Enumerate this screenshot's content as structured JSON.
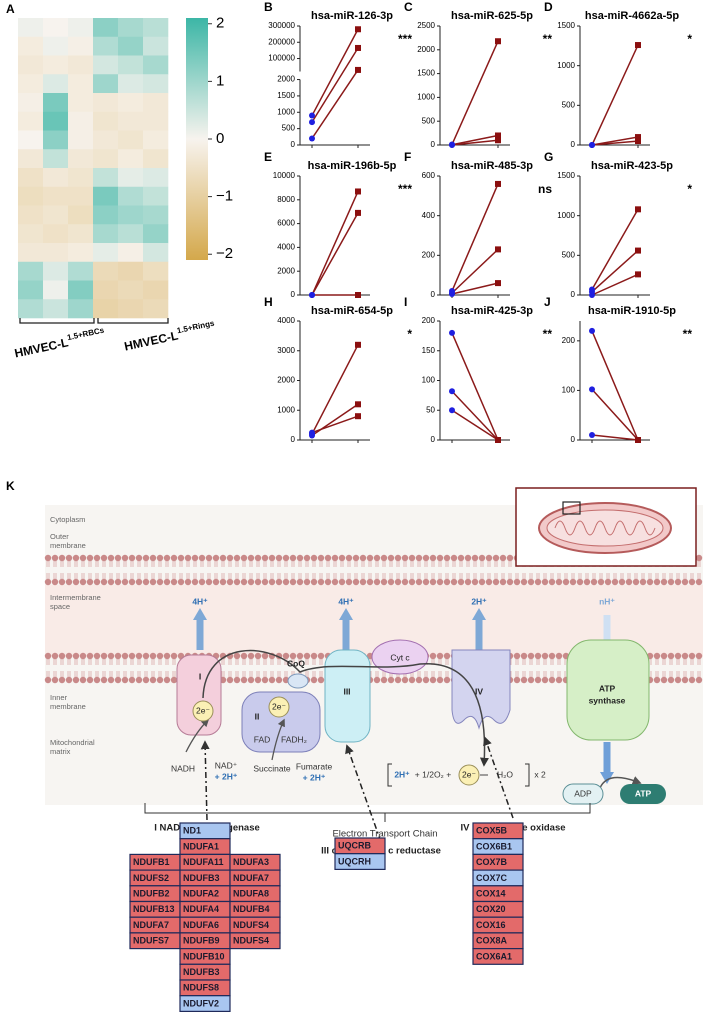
{
  "chart_data": [
    {
      "type": "heatmap",
      "label": "A",
      "values": [
        [
          0.1,
          0.0,
          0.1,
          1.2,
          0.9,
          0.7
        ],
        [
          -0.2,
          0.1,
          -0.1,
          0.8,
          1.1,
          0.5
        ],
        [
          -0.3,
          -0.2,
          -0.3,
          0.4,
          0.6,
          0.9
        ],
        [
          -0.2,
          0.3,
          -0.2,
          1.0,
          0.3,
          0.4
        ],
        [
          -0.1,
          1.4,
          -0.2,
          -0.3,
          -0.2,
          -0.3
        ],
        [
          -0.2,
          1.6,
          -0.1,
          -0.4,
          -0.3,
          -0.3
        ],
        [
          0.0,
          1.2,
          -0.1,
          -0.3,
          -0.4,
          -0.2
        ],
        [
          -0.3,
          0.6,
          -0.3,
          -0.4,
          -0.2,
          -0.4
        ],
        [
          -0.5,
          -0.3,
          -0.4,
          0.6,
          0.2,
          0.3
        ],
        [
          -0.6,
          -0.5,
          -0.5,
          1.4,
          0.8,
          0.6
        ],
        [
          -0.5,
          -0.4,
          -0.6,
          1.2,
          1.0,
          0.9
        ],
        [
          -0.4,
          -0.5,
          -0.4,
          0.9,
          0.7,
          1.1
        ],
        [
          -0.3,
          -0.3,
          -0.2,
          0.2,
          -0.1,
          0.4
        ],
        [
          0.9,
          0.3,
          0.8,
          -0.7,
          -0.8,
          -0.6
        ],
        [
          1.1,
          0.1,
          1.3,
          -0.8,
          -0.7,
          -0.8
        ],
        [
          0.8,
          0.5,
          1.0,
          -0.9,
          -0.8,
          -0.7
        ]
      ],
      "x_groups": [
        {
          "text": "HMVEC-L",
          "superscript": "1.5+RBCs"
        },
        {
          "text": "HMVEC-L",
          "superscript": "1.5+Rings"
        }
      ],
      "colorbar": {
        "colors": [
          "#d4a84b",
          "#f7f3ee",
          "#3cb6a6"
        ],
        "ylim": [
          -2.1,
          2.1
        ],
        "yticks": [
          2,
          1,
          0,
          {
            "value": -1,
            "label": "−1"
          },
          {
            "value": -2,
            "label": "−2"
          }
        ]
      }
    },
    {
      "type": "line",
      "label": "B",
      "title": "hsa-miR-126-3p",
      "significance": "***",
      "line_color": "#8b1a1a",
      "segments": [
        {
          "ylim": [
            0,
            2000
          ],
          "yticks": [
            0,
            500,
            1000,
            1500,
            2000
          ]
        },
        {
          "ylim": [
            20000,
            300000
          ],
          "yticks": [
            100000,
            200000,
            300000
          ]
        }
      ],
      "series": [
        {
          "color": "#1f1fe0",
          "values": [
            900,
            700,
            200
          ]
        },
        {
          "color": "#8b0f0f",
          "values": [
            280000,
            165000,
            30000
          ]
        }
      ]
    },
    {
      "type": "line",
      "label": "C",
      "title": "hsa-miR-625-5p",
      "significance": "**",
      "line_color": "#8b1a1a",
      "ylim": [
        0,
        2500
      ],
      "yticks": [
        0,
        500,
        1000,
        1500,
        2000,
        2500
      ],
      "series": [
        {
          "color": "#1f1fe0",
          "values": [
            10,
            5,
            0
          ]
        },
        {
          "color": "#8b0f0f",
          "values": [
            2180,
            200,
            100
          ]
        }
      ]
    },
    {
      "type": "line",
      "label": "D",
      "title": "hsa-miR-4662a-5p",
      "significance": "*",
      "line_color": "#8b1a1a",
      "ylim": [
        0,
        1500
      ],
      "yticks": [
        0,
        500,
        1000,
        1500
      ],
      "series": [
        {
          "color": "#1f1fe0",
          "values": [
            0,
            0,
            0
          ]
        },
        {
          "color": "#8b0f0f",
          "values": [
            1260,
            100,
            50
          ]
        }
      ]
    },
    {
      "type": "line",
      "label": "E",
      "title": "hsa-miR-196b-5p",
      "significance": "***",
      "line_color": "#8b1a1a",
      "ylim": [
        0,
        10000
      ],
      "yticks": [
        0,
        2000,
        4000,
        6000,
        8000,
        10000
      ],
      "series": [
        {
          "color": "#1f1fe0",
          "values": [
            0,
            0,
            0
          ]
        },
        {
          "color": "#8b0f0f",
          "values": [
            8700,
            6900,
            0
          ]
        }
      ]
    },
    {
      "type": "line",
      "label": "F",
      "title": "hsa-miR-485-3p",
      "significance": "ns",
      "line_color": "#8b1a1a",
      "ylim": [
        0,
        600
      ],
      "yticks": [
        0,
        200,
        400,
        600
      ],
      "series": [
        {
          "color": "#1f1fe0",
          "values": [
            20,
            10,
            5
          ]
        },
        {
          "color": "#8b0f0f",
          "values": [
            560,
            230,
            60
          ]
        }
      ]
    },
    {
      "type": "line",
      "label": "G",
      "title": "hsa-miR-423-5p",
      "significance": "*",
      "line_color": "#8b1a1a",
      "ylim": [
        0,
        1500
      ],
      "yticks": [
        0,
        500,
        1000,
        1500
      ],
      "series": [
        {
          "color": "#1f1fe0",
          "values": [
            70,
            40,
            0
          ]
        },
        {
          "color": "#8b0f0f",
          "values": [
            1080,
            560,
            260
          ]
        }
      ]
    },
    {
      "type": "line",
      "label": "H",
      "title": "hsa-miR-654-5p",
      "significance": "*",
      "line_color": "#8b1a1a",
      "ylim": [
        0,
        4000
      ],
      "yticks": [
        0,
        1000,
        2000,
        3000,
        4000
      ],
      "series": [
        {
          "color": "#1f1fe0",
          "values": [
            200,
            150,
            250
          ]
        },
        {
          "color": "#8b0f0f",
          "values": [
            3200,
            1200,
            800
          ]
        }
      ]
    },
    {
      "type": "line",
      "label": "I",
      "title": "hsa-miR-425-3p",
      "significance": "**",
      "line_color": "#8b1a1a",
      "ylim": [
        0,
        200
      ],
      "yticks": [
        0,
        50,
        100,
        150,
        200
      ],
      "series": [
        {
          "color": "#1f1fe0",
          "values": [
            180,
            82,
            50
          ]
        },
        {
          "color": "#8b0f0f",
          "values": [
            0,
            0,
            0
          ]
        }
      ]
    },
    {
      "type": "line",
      "label": "J",
      "title": "hsa-miR-1910-5p",
      "significance": "**",
      "line_color": "#8b1a1a",
      "ylim": [
        0,
        240
      ],
      "yticks": [
        0,
        100,
        200
      ],
      "series": [
        {
          "color": "#1f1fe0",
          "values": [
            220,
            102,
            10
          ]
        },
        {
          "color": "#8b0f0f",
          "values": [
            0,
            0,
            0
          ]
        }
      ]
    }
  ],
  "diagram": {
    "label": "K",
    "texts": [
      "Cytoplasm",
      "Outer",
      "membrane",
      "Intermembrane",
      "space",
      "Inner",
      "membrane",
      "Mitochondrial",
      "matrix",
      "I",
      "II",
      "III",
      "IV",
      "Cyt c",
      "CoQ",
      "ATP",
      "synthase",
      "4H⁺",
      "4H⁺",
      "2H⁺",
      "nH⁺",
      "2e⁻",
      "2e⁻",
      "FAD",
      "FADH₂",
      "NADH",
      "NAD⁺",
      "+ 2H⁺",
      "Succinate",
      "Fumarate",
      "+ 2H⁺",
      "2H⁺",
      "+ 1/2O₂ +",
      "2e⁻",
      "H₂O",
      "x 2",
      "ADP",
      "ATP",
      "Electron Transport Chain",
      "I NADH dehydrogenase",
      "III cytochrome c reductase",
      "IV Cytochrome oxidase"
    ],
    "tables": [
      {
        "columns": [
          [
            {
              "text": "NDUFB1",
              "color": "#e36a6a"
            },
            {
              "text": "NDUFS2",
              "color": "#e36a6a"
            },
            {
              "text": "NDUFB2",
              "color": "#e36a6a"
            },
            {
              "text": "NDUFB13",
              "color": "#e36a6a"
            },
            {
              "text": "NDUFA7",
              "color": "#e36a6a"
            },
            {
              "text": "NDUFS7",
              "color": "#e36a6a"
            }
          ],
          [
            {
              "text": "ND1",
              "color": "#a9c6f0"
            },
            {
              "text": "NDUFA1",
              "color": "#e36a6a"
            },
            {
              "text": "NDUFA11",
              "color": "#e36a6a"
            },
            {
              "text": "NDUFB3",
              "color": "#e36a6a"
            },
            {
              "text": "NDUFA2",
              "color": "#e36a6a"
            },
            {
              "text": "NDUFA4",
              "color": "#e36a6a"
            },
            {
              "text": "NDUFA6",
              "color": "#e36a6a"
            },
            {
              "text": "NDUFB9",
              "color": "#e36a6a"
            },
            {
              "text": "NDUFB10",
              "color": "#e36a6a"
            },
            {
              "text": "NDUFB3",
              "color": "#e36a6a"
            },
            {
              "text": "NDUFS8",
              "color": "#e36a6a"
            },
            {
              "text": "NDUFV2",
              "color": "#a9c6f0"
            }
          ],
          [
            {
              "text": "NDUFA3",
              "color": "#e36a6a"
            },
            {
              "text": "NDUFA7",
              "color": "#e36a6a"
            },
            {
              "text": "NDUFA8",
              "color": "#e36a6a"
            },
            {
              "text": "NDUFB4",
              "color": "#e36a6a"
            },
            {
              "text": "NDUFS4",
              "color": "#e36a6a"
            },
            {
              "text": "NDUFS4",
              "color": "#e36a6a"
            }
          ]
        ]
      },
      {
        "columns": [
          [
            {
              "text": "UQCRB",
              "color": "#e36a6a"
            },
            {
              "text": "UQCRH",
              "color": "#a9c6f0"
            }
          ]
        ]
      },
      {
        "columns": [
          [
            {
              "text": "COX5B",
              "color": "#e36a6a"
            },
            {
              "text": "COX6B1",
              "color": "#a9c6f0"
            },
            {
              "text": "COX7B",
              "color": "#e36a6a"
            },
            {
              "text": "COX7C",
              "color": "#a9c6f0"
            },
            {
              "text": "COX14",
              "color": "#e36a6a"
            },
            {
              "text": "COX20",
              "color": "#e36a6a"
            },
            {
              "text": "COX16",
              "color": "#e36a6a"
            },
            {
              "text": "COX8A",
              "color": "#e36a6a"
            },
            {
              "text": "COX6A1",
              "color": "#e36a6a"
            }
          ]
        ]
      }
    ]
  }
}
